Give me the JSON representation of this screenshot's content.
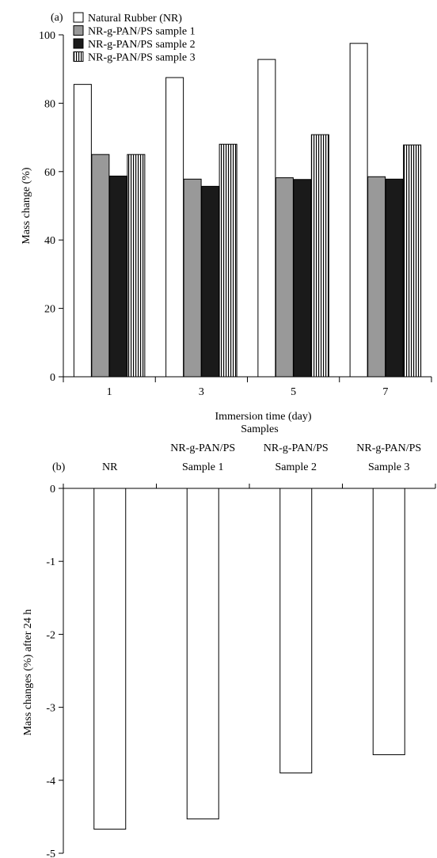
{
  "chart_data": [
    {
      "panel_label": "(a)",
      "type": "bar",
      "xlabel": "Immersion time (day)",
      "ylabel": "Mass change (%)",
      "categories": [
        "1",
        "3",
        "5",
        "7"
      ],
      "ylim": [
        0,
        100
      ],
      "yticks": [
        0,
        20,
        40,
        60,
        80,
        100
      ],
      "grid": false,
      "legend": "top-left",
      "series": [
        {
          "name": "Natural Rubber (NR)",
          "fill": "#ffffff",
          "pattern": "none",
          "values": [
            85.5,
            87.5,
            92.8,
            97.5
          ]
        },
        {
          "name": "NR-g-PAN/PS sample 1",
          "fill": "#999999",
          "pattern": "none",
          "values": [
            65,
            57.8,
            58.2,
            58.5
          ]
        },
        {
          "name": "NR-g-PAN/PS sample 2",
          "fill": "#1a1a1a",
          "pattern": "none",
          "values": [
            58.7,
            55.7,
            57.7,
            57.8
          ]
        },
        {
          "name": "NR-g-PAN/PS sample 3",
          "fill": "#ffffff",
          "pattern": "vertical-lines",
          "values": [
            65,
            68,
            70.8,
            67.8
          ]
        }
      ]
    },
    {
      "panel_label": "(b)",
      "type": "bar",
      "xlabel": "Samples",
      "x_axis_position": "top",
      "ylabel": "Mass changes (%) after 24 h",
      "categories": [
        [
          "NR"
        ],
        [
          "NR-g-PAN/PS",
          "Sample 1"
        ],
        [
          "NR-g-PAN/PS",
          "Sample 2"
        ],
        [
          "NR-g-PAN/PS",
          "Sample 3"
        ]
      ],
      "ylim": [
        -5,
        0
      ],
      "yticks": [
        0,
        -1,
        -2,
        -3,
        -4,
        -5
      ],
      "grid": false,
      "series": [
        {
          "fill": "#ffffff",
          "values": [
            -4.67,
            -4.53,
            -3.9,
            -3.65
          ]
        }
      ]
    }
  ]
}
